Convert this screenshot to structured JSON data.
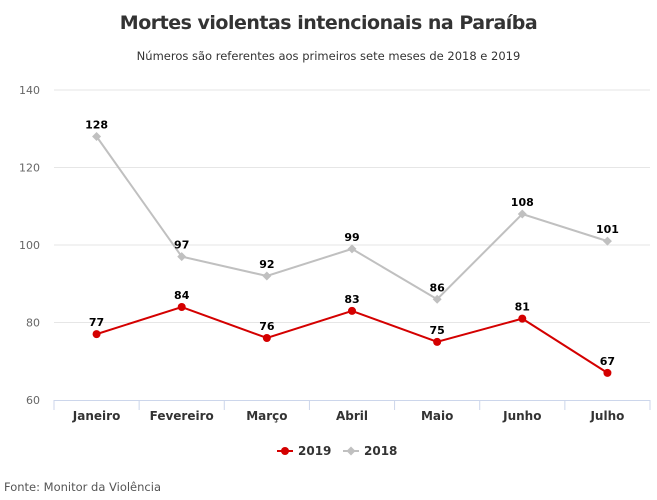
{
  "chart_data": {
    "type": "line",
    "title": "Mortes violentas intencionais na Paraíba",
    "subtitle": "Números são referentes aos primeiros sete meses de 2018 e 2019",
    "categories": [
      "Janeiro",
      "Fevereiro",
      "Março",
      "Abril",
      "Maio",
      "Junho",
      "Julho"
    ],
    "series": [
      {
        "name": "2019",
        "values": [
          77,
          84,
          76,
          83,
          75,
          81,
          67
        ],
        "color": "#d40000",
        "marker": "circle"
      },
      {
        "name": "2018",
        "values": [
          128,
          97,
          92,
          99,
          86,
          108,
          101
        ],
        "color": "#c0c0c0",
        "marker": "diamond"
      }
    ],
    "ylim": [
      60,
      140
    ],
    "yticks": [
      60,
      80,
      100,
      120,
      140
    ],
    "grid": true,
    "legend": "bottom",
    "xlabel": "",
    "ylabel": ""
  },
  "source": "Fonte: Monitor da Violência"
}
